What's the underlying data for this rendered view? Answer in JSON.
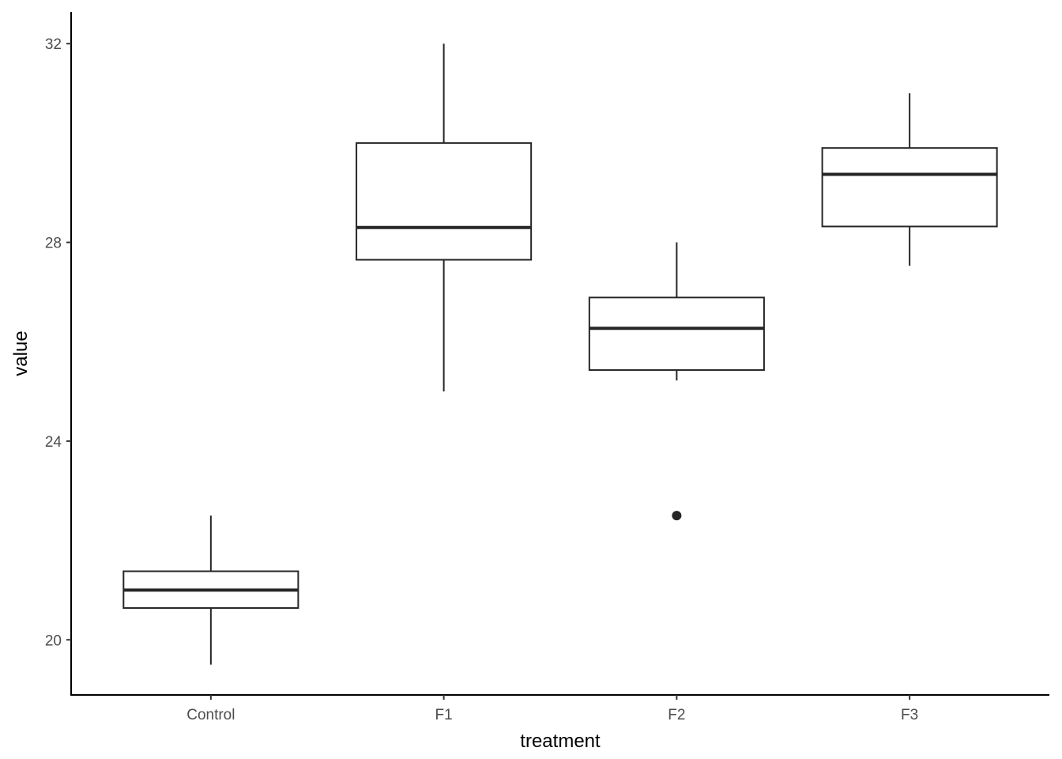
{
  "chart_data": {
    "type": "boxplot",
    "title": "",
    "xlabel": "treatment",
    "ylabel": "value",
    "categories": [
      "Control",
      "F1",
      "F2",
      "F3"
    ],
    "boxes": [
      {
        "name": "Control",
        "whisker_low": 19.5,
        "q1": 20.64,
        "median": 21.0,
        "q3": 21.38,
        "whisker_high": 22.5,
        "outliers": []
      },
      {
        "name": "F1",
        "whisker_low": 25.0,
        "q1": 27.65,
        "median": 28.3,
        "q3": 30.0,
        "whisker_high": 32.0,
        "outliers": []
      },
      {
        "name": "F2",
        "whisker_low": 25.22,
        "q1": 25.43,
        "median": 26.27,
        "q3": 26.89,
        "whisker_high": 28.0,
        "outliers": [
          22.5
        ]
      },
      {
        "name": "F3",
        "whisker_low": 27.53,
        "q1": 28.32,
        "median": 29.37,
        "q3": 29.9,
        "whisker_high": 31.0,
        "outliers": []
      }
    ],
    "yticks": [
      20,
      24,
      28,
      32
    ],
    "ytick_labels": [
      "20",
      "24",
      "28",
      "32"
    ],
    "ylim": [
      18.89,
      32.64
    ],
    "grid": false,
    "colors": {
      "line": "#262626",
      "axis": "#000000",
      "fill": "#ffffff"
    }
  }
}
